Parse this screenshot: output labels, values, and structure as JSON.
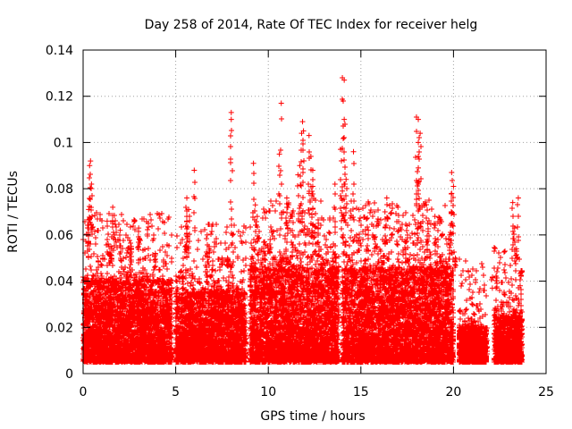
{
  "chart_data": {
    "type": "scatter",
    "title": "Day 258 of 2014, Rate Of TEC Index for receiver helg",
    "xlabel": "GPS time / hours",
    "ylabel": "ROTI / TECUs",
    "xlim": [
      0,
      25
    ],
    "ylim": [
      0,
      0.14
    ],
    "x_ticks": [
      0,
      5,
      10,
      15,
      20,
      25
    ],
    "x_tick_labels": [
      "0",
      "5",
      "10",
      "15",
      "20",
      "25"
    ],
    "y_ticks": [
      0,
      0.02,
      0.04,
      0.06,
      0.08,
      0.1,
      0.12,
      0.14
    ],
    "y_tick_labels": [
      "0",
      "0.02",
      "0.04",
      "0.06",
      "0.08",
      "0.1",
      "0.12",
      "0.14"
    ],
    "grid": true,
    "marker": "+",
    "series": [
      {
        "name": "ROTI",
        "color": "#ff0000",
        "density_profile": [
          {
            "x_start": 0.0,
            "x_end": 4.8,
            "typical_min": 0.005,
            "typical_max": 0.04
          },
          {
            "x_start": 5.0,
            "x_end": 8.8,
            "typical_min": 0.005,
            "typical_max": 0.035
          },
          {
            "x_start": 9.0,
            "x_end": 13.8,
            "typical_min": 0.005,
            "typical_max": 0.045
          },
          {
            "x_start": 14.0,
            "x_end": 20.0,
            "typical_min": 0.005,
            "typical_max": 0.045
          },
          {
            "x_start": 20.3,
            "x_end": 21.8,
            "typical_min": 0.005,
            "typical_max": 0.02
          },
          {
            "x_start": 22.2,
            "x_end": 23.7,
            "typical_min": 0.005,
            "typical_max": 0.025
          }
        ],
        "highlight_points": [
          {
            "x": 0.4,
            "y": 0.092
          },
          {
            "x": 0.35,
            "y": 0.09
          },
          {
            "x": 0.45,
            "y": 0.082
          },
          {
            "x": 0.3,
            "y": 0.071
          },
          {
            "x": 0.3,
            "y": 0.063
          },
          {
            "x": 1.3,
            "y": 0.066
          },
          {
            "x": 1.6,
            "y": 0.072
          },
          {
            "x": 1.5,
            "y": 0.055
          },
          {
            "x": 2.0,
            "y": 0.062
          },
          {
            "x": 2.6,
            "y": 0.055
          },
          {
            "x": 3.0,
            "y": 0.063
          },
          {
            "x": 3.9,
            "y": 0.052
          },
          {
            "x": 4.1,
            "y": 0.045
          },
          {
            "x": 5.6,
            "y": 0.076
          },
          {
            "x": 5.7,
            "y": 0.071
          },
          {
            "x": 5.6,
            "y": 0.068
          },
          {
            "x": 5.6,
            "y": 0.066
          },
          {
            "x": 6.0,
            "y": 0.088
          },
          {
            "x": 6.7,
            "y": 0.06
          },
          {
            "x": 6.8,
            "y": 0.055
          },
          {
            "x": 7.0,
            "y": 0.045
          },
          {
            "x": 7.5,
            "y": 0.05
          },
          {
            "x": 8.0,
            "y": 0.113
          },
          {
            "x": 8.0,
            "y": 0.11
          },
          {
            "x": 7.8,
            "y": 0.05
          },
          {
            "x": 9.2,
            "y": 0.091
          },
          {
            "x": 9.3,
            "y": 0.073
          },
          {
            "x": 9.4,
            "y": 0.068
          },
          {
            "x": 9.8,
            "y": 0.057
          },
          {
            "x": 10.1,
            "y": 0.058
          },
          {
            "x": 10.7,
            "y": 0.117
          },
          {
            "x": 10.6,
            "y": 0.095
          },
          {
            "x": 11.0,
            "y": 0.076
          },
          {
            "x": 11.3,
            "y": 0.068
          },
          {
            "x": 11.6,
            "y": 0.086
          },
          {
            "x": 11.7,
            "y": 0.09
          },
          {
            "x": 11.8,
            "y": 0.104
          },
          {
            "x": 11.85,
            "y": 0.109
          },
          {
            "x": 11.9,
            "y": 0.105
          },
          {
            "x": 12.2,
            "y": 0.103
          },
          {
            "x": 12.3,
            "y": 0.094
          },
          {
            "x": 12.4,
            "y": 0.088
          },
          {
            "x": 12.4,
            "y": 0.081
          },
          {
            "x": 12.2,
            "y": 0.078
          },
          {
            "x": 12.7,
            "y": 0.065
          },
          {
            "x": 13.6,
            "y": 0.082
          },
          {
            "x": 14.0,
            "y": 0.128
          },
          {
            "x": 14.1,
            "y": 0.127
          },
          {
            "x": 13.9,
            "y": 0.097
          },
          {
            "x": 14.1,
            "y": 0.11
          },
          {
            "x": 14.2,
            "y": 0.084
          },
          {
            "x": 14.0,
            "y": 0.079
          },
          {
            "x": 14.6,
            "y": 0.096
          },
          {
            "x": 14.9,
            "y": 0.071
          },
          {
            "x": 15.4,
            "y": 0.062
          },
          {
            "x": 16.3,
            "y": 0.07
          },
          {
            "x": 16.4,
            "y": 0.076
          },
          {
            "x": 17.0,
            "y": 0.072
          },
          {
            "x": 17.5,
            "y": 0.064
          },
          {
            "x": 18.0,
            "y": 0.111
          },
          {
            "x": 18.1,
            "y": 0.11
          },
          {
            "x": 18.2,
            "y": 0.104
          },
          {
            "x": 18.1,
            "y": 0.1
          },
          {
            "x": 18.1,
            "y": 0.089
          },
          {
            "x": 18.3,
            "y": 0.072
          },
          {
            "x": 18.6,
            "y": 0.065
          },
          {
            "x": 19.0,
            "y": 0.068
          },
          {
            "x": 19.9,
            "y": 0.087
          },
          {
            "x": 20.0,
            "y": 0.081
          },
          {
            "x": 19.9,
            "y": 0.078
          },
          {
            "x": 19.8,
            "y": 0.06
          },
          {
            "x": 20.1,
            "y": 0.05
          },
          {
            "x": 20.8,
            "y": 0.024
          },
          {
            "x": 21.2,
            "y": 0.021
          },
          {
            "x": 22.1,
            "y": 0.037
          },
          {
            "x": 22.3,
            "y": 0.037
          },
          {
            "x": 23.2,
            "y": 0.074
          },
          {
            "x": 23.3,
            "y": 0.063
          },
          {
            "x": 23.5,
            "y": 0.076
          },
          {
            "x": 23.4,
            "y": 0.054
          },
          {
            "x": 23.6,
            "y": 0.038
          },
          {
            "x": 23.7,
            "y": 0.044
          },
          {
            "x": 23.2,
            "y": 0.032
          }
        ]
      }
    ]
  }
}
